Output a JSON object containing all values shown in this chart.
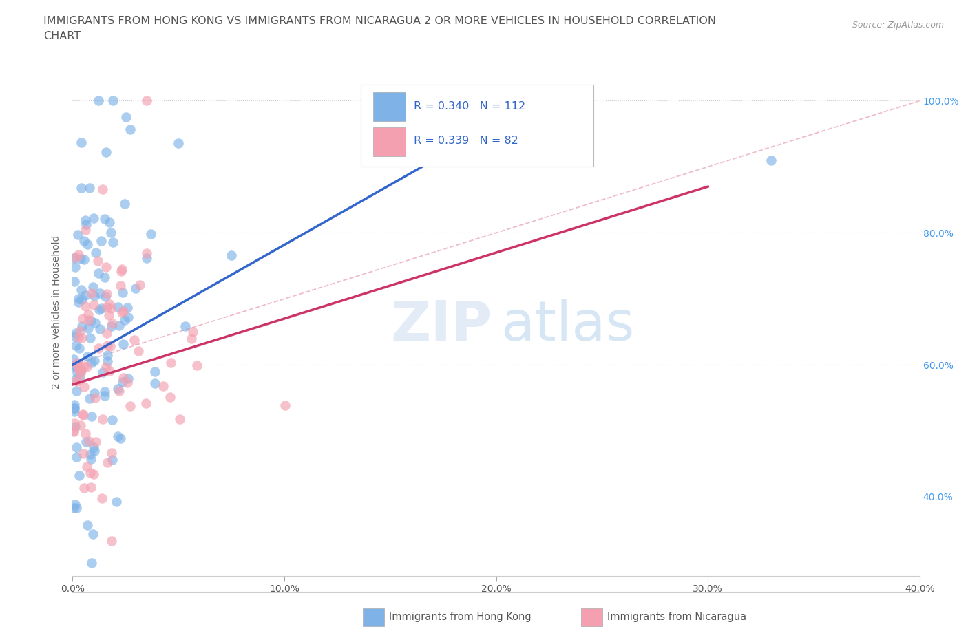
{
  "title_line1": "IMMIGRANTS FROM HONG KONG VS IMMIGRANTS FROM NICARAGUA 2 OR MORE VEHICLES IN HOUSEHOLD CORRELATION",
  "title_line2": "CHART",
  "source": "Source: ZipAtlas.com",
  "ylabel": "2 or more Vehicles in Household",
  "x_tick_labels": [
    "0.0%",
    "10.0%",
    "20.0%",
    "30.0%",
    "40.0%"
  ],
  "x_tick_vals": [
    0,
    10,
    20,
    30,
    40
  ],
  "y_tick_labels": [
    "40.0%",
    "60.0%",
    "80.0%",
    "100.0%"
  ],
  "y_tick_vals": [
    40,
    60,
    80,
    100
  ],
  "xlim": [
    0,
    40
  ],
  "ylim": [
    28,
    108
  ],
  "r_hk": 0.34,
  "n_hk": 112,
  "r_nic": 0.339,
  "n_nic": 82,
  "color_hk": "#7fb3e8",
  "color_nic": "#f4a0b0",
  "trendline_hk_color": "#3366cc",
  "trendline_nic_color": "#cc3366",
  "trendline_diag_color": "#e8a0b0",
  "legend_label_hk": "Immigrants from Hong Kong",
  "legend_label_nic": "Immigrants from Nicaragua",
  "watermark_zip": "ZIP",
  "watermark_atlas": "atlas",
  "background_color": "#ffffff",
  "hk_trendline_x0": 0,
  "hk_trendline_y0": 60,
  "hk_trendline_x1": 22,
  "hk_trendline_y1": 100,
  "nic_trendline_x0": 0,
  "nic_trendline_y0": 57,
  "nic_trendline_x1": 30,
  "nic_trendline_y1": 87,
  "diag_x0": 0,
  "diag_y0": 60,
  "diag_x1": 40,
  "diag_y1": 100
}
